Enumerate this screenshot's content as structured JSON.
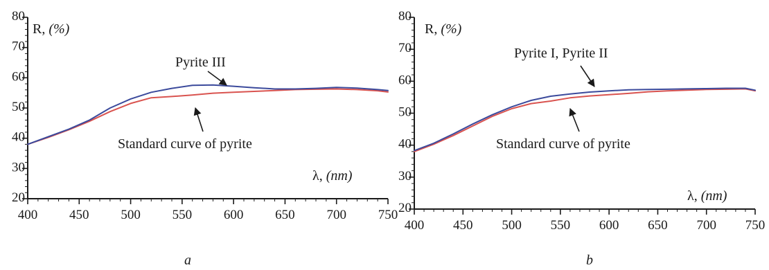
{
  "chart_data": [
    {
      "type": "line",
      "panel_label": "a",
      "ylabel_prefix": "R, ",
      "ylabel_unit": "(%)",
      "xlabel_prefix": "λ, ",
      "xlabel_unit": "(nm)",
      "xlim": [
        400,
        750
      ],
      "ylim": [
        20,
        80
      ],
      "x_ticks": [
        400,
        450,
        500,
        550,
        600,
        650,
        700,
        750
      ],
      "y_ticks": [
        20,
        30,
        40,
        50,
        60,
        70,
        80
      ],
      "grid": false,
      "series": [
        {
          "name": "Pyrite III",
          "color": "#3b4a9c",
          "x": [
            400,
            420,
            440,
            460,
            480,
            500,
            520,
            540,
            560,
            580,
            600,
            620,
            640,
            660,
            680,
            700,
            720,
            740,
            750
          ],
          "y": [
            38.0,
            40.5,
            43.0,
            46.0,
            50.0,
            53.0,
            55.2,
            56.5,
            57.5,
            57.6,
            57.2,
            56.7,
            56.3,
            56.3,
            56.5,
            56.8,
            56.6,
            56.1,
            55.8
          ]
        },
        {
          "name": "Standard curve of pyrite",
          "color": "#d9534f",
          "x": [
            400,
            420,
            440,
            460,
            480,
            500,
            520,
            540,
            560,
            580,
            600,
            620,
            640,
            660,
            680,
            700,
            720,
            740,
            750
          ],
          "y": [
            38.0,
            40.3,
            42.8,
            45.6,
            48.8,
            51.5,
            53.4,
            53.8,
            54.3,
            54.9,
            55.2,
            55.5,
            55.8,
            56.1,
            56.2,
            56.3,
            56.1,
            55.7,
            55.3
          ]
        }
      ],
      "annotations": [
        "Pyrite III",
        "Standard curve of pyrite"
      ]
    },
    {
      "type": "line",
      "panel_label": "b",
      "ylabel_prefix": "R, ",
      "ylabel_unit": "(%)",
      "xlabel_prefix": "λ, ",
      "xlabel_unit": "(nm)",
      "xlim": [
        400,
        750
      ],
      "ylim": [
        20,
        80
      ],
      "x_ticks": [
        400,
        450,
        500,
        550,
        600,
        650,
        700,
        750
      ],
      "y_ticks": [
        20,
        30,
        40,
        50,
        60,
        70,
        80
      ],
      "grid": false,
      "series": [
        {
          "name": "Pyrite I, Pyrite II",
          "color": "#3b4a9c",
          "x": [
            400,
            420,
            440,
            460,
            480,
            500,
            520,
            540,
            560,
            580,
            600,
            620,
            640,
            660,
            680,
            700,
            720,
            740,
            750
          ],
          "y": [
            38.3,
            40.6,
            43.5,
            46.6,
            49.5,
            52.0,
            54.0,
            55.3,
            56.0,
            56.6,
            57.0,
            57.3,
            57.4,
            57.5,
            57.6,
            57.7,
            57.8,
            57.8,
            57.2
          ]
        },
        {
          "name": "Standard curve of pyrite",
          "color": "#d9534f",
          "x": [
            400,
            420,
            440,
            460,
            480,
            500,
            520,
            540,
            560,
            580,
            600,
            620,
            640,
            660,
            680,
            700,
            720,
            740,
            750
          ],
          "y": [
            38.0,
            40.3,
            43.0,
            46.0,
            49.0,
            51.4,
            53.0,
            53.8,
            54.8,
            55.4,
            55.8,
            56.2,
            56.7,
            57.0,
            57.2,
            57.4,
            57.5,
            57.6,
            57.0
          ]
        }
      ],
      "annotations": [
        "Pyrite I, Pyrite II",
        "Standard curve of pyrite"
      ]
    }
  ]
}
